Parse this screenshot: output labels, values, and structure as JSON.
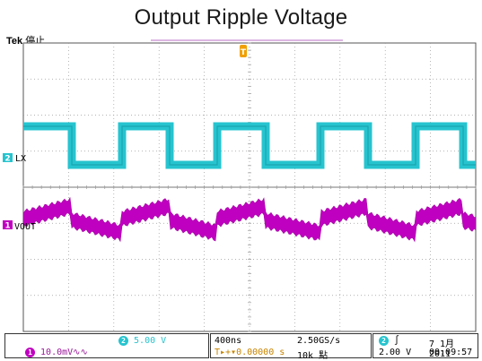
{
  "title": "Output Ripple Voltage",
  "header": {
    "brand": "Tek",
    "state": "停止"
  },
  "colors": {
    "ch1": "#c000c0",
    "ch2": "#26c4cf",
    "grid": "#9a9a9a",
    "trigger": "#f0a000"
  },
  "chart_data": {
    "type": "line",
    "grid": true,
    "divisions": {
      "x": 10,
      "y": 8
    },
    "series": [
      {
        "name": "LX",
        "channel": 2,
        "scale": "5.00 V",
        "shape": "square wave"
      },
      {
        "name": "VOUT",
        "channel": 1,
        "scale": "10.0mV",
        "coupling": "AC",
        "shape": "ripple"
      }
    ],
    "markers": {
      "ch2": "2",
      "ch1": "1",
      "trigger": "T"
    }
  },
  "status": {
    "ch2_badge": "2",
    "ch2_scale": "5.00 V",
    "ch1_badge": "1",
    "ch1_scale": "10.0mV",
    "ch1_coupling": "∿∿",
    "timebase": "400ns",
    "trigger_offset": "T▸+▾0.00000 s",
    "sample_rate": "2.50GS/s",
    "record_length": "10k 點",
    "trig_badge": "2",
    "trig_slope": "∫",
    "trig_level": "2.00 V",
    "date": "7 1月 2011",
    "time": "00:09:57"
  }
}
